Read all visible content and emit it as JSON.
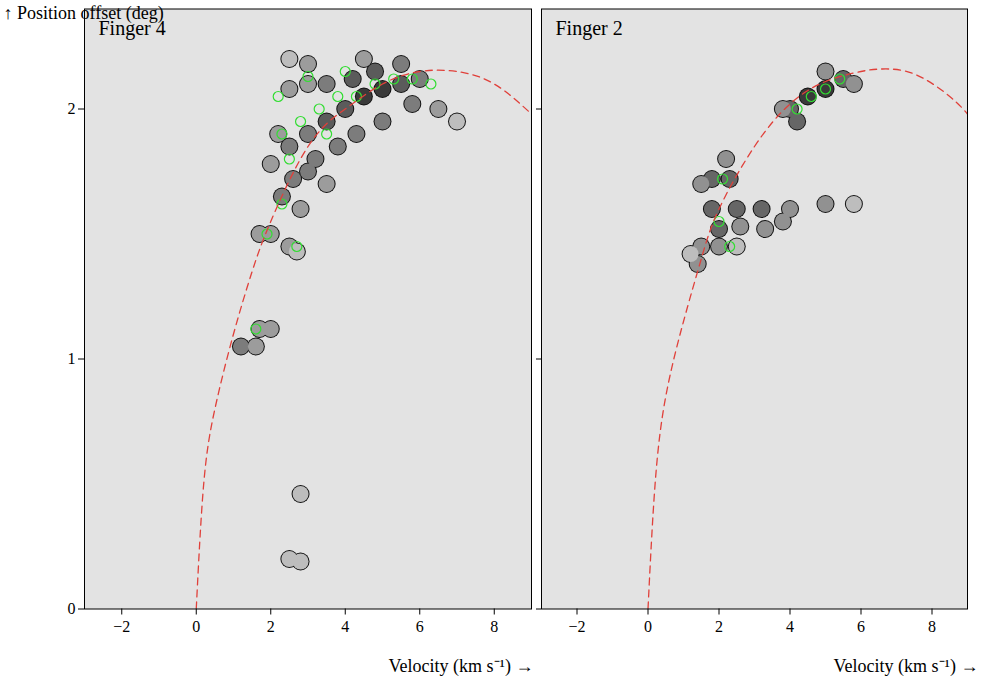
{
  "chart_data": [
    {
      "type": "contour",
      "title": "Finger 4",
      "xlabel": "Velocity (km s⁻¹)",
      "ylabel": "Position offset (deg)",
      "xlim": [
        -3,
        9
      ],
      "ylim": [
        0,
        2.4
      ],
      "xticks": [
        {
          "value": -2,
          "label": "−2"
        },
        0,
        2,
        4,
        6,
        8
      ],
      "yticks": [
        0,
        1,
        2
      ],
      "cells": {
        "x": [
          2.0,
          1.7,
          2.5,
          2.7,
          1.2,
          1.6,
          2.0,
          1.7,
          2.8,
          2.8,
          2.5,
          2.3,
          2.6,
          3.0,
          2.5,
          2.2,
          3.0,
          3.5,
          3.2,
          4.0,
          4.5,
          5.0,
          5.5,
          6.0,
          4.2,
          3.5,
          4.8,
          5.8,
          6.5,
          7.0,
          2.5,
          3.0,
          3.8,
          4.3,
          5.0,
          2.0,
          3.5,
          2.8,
          3.0,
          4.5,
          5.5,
          2.5
        ],
        "y": [
          1.5,
          1.5,
          1.45,
          1.43,
          1.05,
          1.05,
          1.12,
          1.12,
          0.46,
          0.19,
          0.2,
          1.65,
          1.72,
          1.75,
          1.85,
          1.9,
          1.9,
          1.95,
          1.8,
          2.0,
          2.05,
          2.08,
          2.1,
          2.12,
          2.12,
          2.1,
          2.15,
          2.02,
          2.0,
          1.95,
          2.08,
          2.1,
          1.85,
          1.9,
          1.95,
          1.78,
          1.7,
          1.6,
          2.18,
          2.2,
          2.18,
          2.2
        ],
        "values": [
          2,
          2,
          2,
          1,
          3,
          2,
          2,
          2,
          1,
          1,
          1,
          3,
          3,
          3,
          3,
          2,
          3,
          4,
          3,
          4,
          5,
          5,
          4,
          3,
          4,
          3,
          4,
          3,
          2,
          1,
          2,
          2,
          3,
          3,
          3,
          2,
          2,
          2,
          2,
          2,
          3,
          1
        ]
      },
      "green": {
        "color": "#33dd33",
        "x": [
          2.3,
          2.8,
          3.3,
          3.8,
          4.3,
          4.8,
          5.3,
          5.8,
          3.0,
          4.0,
          2.2,
          2.5,
          3.5,
          1.9,
          2.3,
          2.7,
          1.6,
          6.3
        ],
        "y": [
          1.9,
          1.95,
          2.0,
          2.05,
          2.05,
          2.1,
          2.12,
          2.12,
          2.13,
          2.15,
          2.05,
          1.8,
          1.9,
          1.5,
          1.62,
          1.45,
          1.12,
          2.1
        ]
      },
      "curve": {
        "color": "#e0403a",
        "line_style": "dashed",
        "x": [
          0,
          0.2,
          0.5,
          1,
          1.5,
          2,
          3,
          4,
          5,
          6,
          7,
          8,
          9
        ],
        "y": [
          0,
          0.5,
          0.8,
          1.1,
          1.35,
          1.55,
          1.85,
          2.0,
          2.1,
          2.15,
          2.15,
          2.1,
          1.98
        ]
      }
    },
    {
      "type": "contour",
      "title": "Finger 2",
      "xlabel": "Velocity (km s⁻¹)",
      "xlim": [
        -3,
        9
      ],
      "ylim": [
        0,
        2.4
      ],
      "xticks": [
        {
          "value": -2,
          "label": "−2"
        },
        0,
        2,
        4,
        6,
        8
      ],
      "yticks": [
        0,
        1,
        2
      ],
      "tick_labels": "x",
      "cells": {
        "x": [
          4.0,
          4.5,
          5.0,
          5.5,
          4.2,
          3.8,
          5.0,
          5.8,
          1.8,
          2.3,
          1.5,
          2.2,
          1.8,
          2.5,
          3.2,
          4.0,
          5.0,
          5.8,
          2.0,
          2.6,
          3.8,
          3.3,
          1.5,
          2.0,
          1.4,
          1.2,
          2.5
        ],
        "y": [
          2.0,
          2.05,
          2.08,
          2.12,
          1.95,
          2.0,
          2.15,
          2.1,
          1.72,
          1.72,
          1.7,
          1.8,
          1.6,
          1.6,
          1.6,
          1.6,
          1.62,
          1.62,
          1.52,
          1.53,
          1.55,
          1.52,
          1.45,
          1.45,
          1.38,
          1.42,
          1.45
        ],
        "values": [
          3,
          4,
          4,
          3,
          3,
          2,
          2,
          2,
          3,
          3,
          2,
          2,
          3,
          3,
          3,
          2,
          2,
          1,
          3,
          2,
          2,
          2,
          2,
          2,
          2,
          1,
          1
        ]
      },
      "green": {
        "color": "#33dd33",
        "x": [
          4.2,
          4.6,
          5.0,
          5.4,
          2.1,
          2.0,
          2.3
        ],
        "y": [
          2.0,
          2.05,
          2.08,
          2.12,
          1.72,
          1.55,
          1.45
        ]
      },
      "curve": {
        "color": "#e0403a",
        "line_style": "dashed",
        "x": [
          0,
          0.2,
          0.5,
          1,
          1.5,
          2,
          3,
          4,
          5,
          6,
          6.6,
          7.5,
          8.5,
          9
        ],
        "y": [
          0,
          0.5,
          0.85,
          1.15,
          1.4,
          1.6,
          1.85,
          2.02,
          2.11,
          2.15,
          2.16,
          2.14,
          2.05,
          1.98
        ]
      }
    }
  ]
}
